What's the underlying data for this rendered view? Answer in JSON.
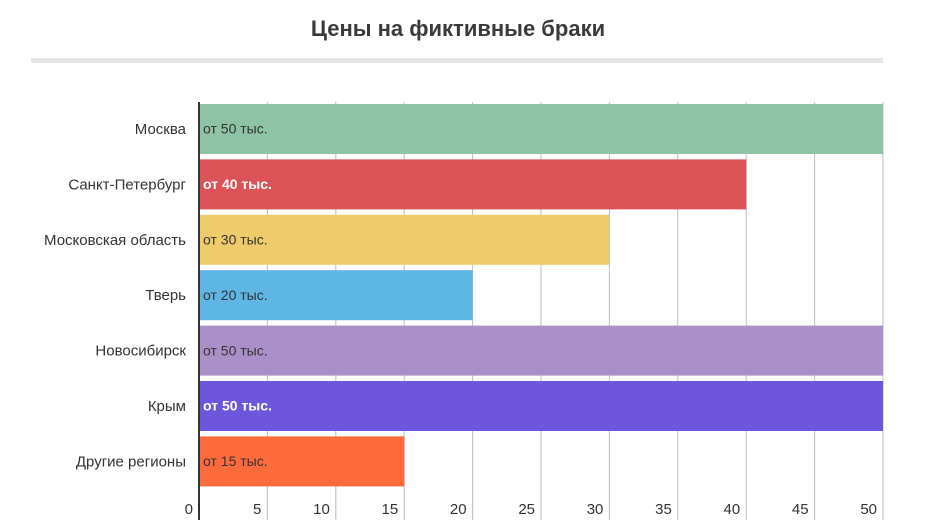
{
  "chart_data": {
    "type": "hbar",
    "title": "Цены на фиктивные браки",
    "categories": [
      "Москва",
      "Санкт-Петербург",
      "Московская область",
      "Тверь",
      "Новосибирск",
      "Крым",
      "Другие регионы"
    ],
    "values": [
      50,
      40,
      30,
      20,
      50,
      50,
      15
    ],
    "value_labels": [
      "от 50 тыс.",
      "от 40 тыс.",
      "от 30 тыс.",
      "от 20 тыс.",
      "от 50 тыс.",
      "от 50 тыс.",
      "от 15 тыс."
    ],
    "colors": [
      "#8fc3a5",
      "#dc5357",
      "#eecb6b",
      "#5db6e4",
      "#ab90c7",
      "#6d56db",
      "#fd6a3b"
    ],
    "xlim": [
      0,
      50
    ],
    "xticks": [
      0,
      5,
      10,
      15,
      20,
      25,
      30,
      35,
      40,
      45,
      50
    ],
    "grid": true
  }
}
